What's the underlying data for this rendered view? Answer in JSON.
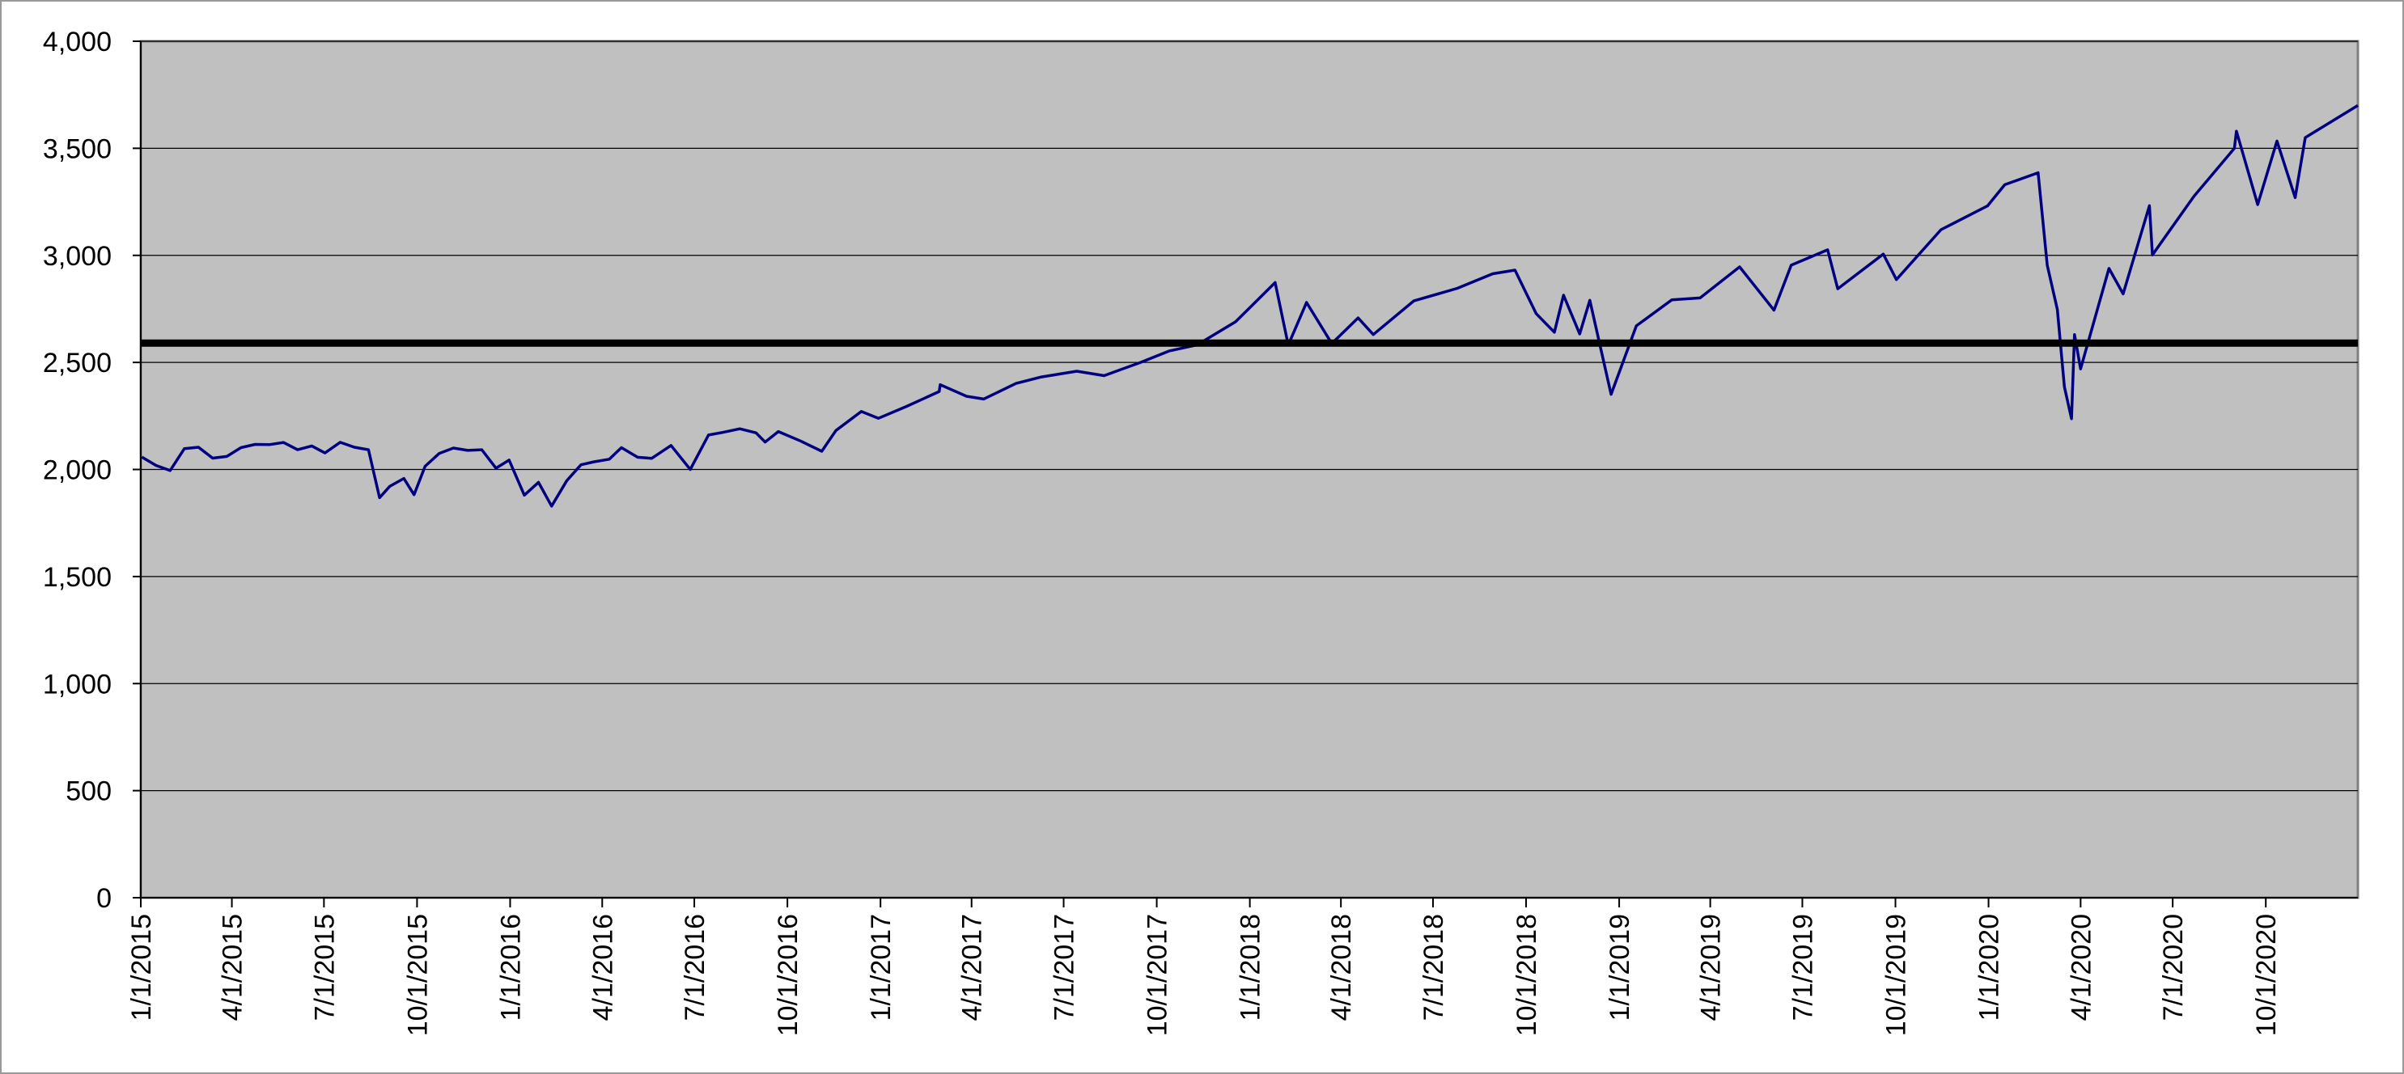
{
  "chart_data": {
    "type": "line",
    "x": [
      "2015-01-02",
      "2015-01-16",
      "2015-01-30",
      "2015-02-13",
      "2015-02-27",
      "2015-03-13",
      "2015-03-27",
      "2015-04-10",
      "2015-04-24",
      "2015-05-08",
      "2015-05-22",
      "2015-06-05",
      "2015-06-19",
      "2015-07-02",
      "2015-07-17",
      "2015-07-31",
      "2015-08-14",
      "2015-08-25",
      "2015-09-04",
      "2015-09-18",
      "2015-09-28",
      "2015-10-09",
      "2015-10-23",
      "2015-11-06",
      "2015-11-20",
      "2015-12-04",
      "2015-12-18",
      "2015-12-31",
      "2016-01-15",
      "2016-01-29",
      "2016-02-11",
      "2016-02-26",
      "2016-03-11",
      "2016-03-24",
      "2016-04-08",
      "2016-04-20",
      "2016-05-06",
      "2016-05-20",
      "2016-06-08",
      "2016-06-27",
      "2016-07-15",
      "2016-07-29",
      "2016-08-15",
      "2016-08-31",
      "2016-09-09",
      "2016-09-22",
      "2016-10-14",
      "2016-11-04",
      "2016-11-18",
      "2016-12-13",
      "2016-12-30",
      "2017-01-27",
      "2017-02-28",
      "2017-03-01",
      "2017-03-27",
      "2017-04-13",
      "2017-05-15",
      "2017-06-09",
      "2017-07-14",
      "2017-08-10",
      "2017-09-15",
      "2017-10-13",
      "2017-11-10",
      "2017-12-18",
      "2018-01-26",
      "2018-02-08",
      "2018-02-26",
      "2018-03-23",
      "2018-04-18",
      "2018-05-03",
      "2018-06-12",
      "2018-07-25",
      "2018-08-29",
      "2018-09-20",
      "2018-10-11",
      "2018-10-29",
      "2018-11-07",
      "2018-11-23",
      "2018-12-03",
      "2018-12-24",
      "2019-01-18",
      "2019-02-22",
      "2019-03-22",
      "2019-04-30",
      "2019-06-03",
      "2019-06-20",
      "2019-07-26",
      "2019-08-05",
      "2019-09-19",
      "2019-10-02",
      "2019-11-15",
      "2019-12-31",
      "2020-01-17",
      "2020-02-19",
      "2020-02-28",
      "2020-03-09",
      "2020-03-16",
      "2020-03-23",
      "2020-03-26",
      "2020-04-01",
      "2020-04-29",
      "2020-05-13",
      "2020-06-08",
      "2020-06-11",
      "2020-07-22",
      "2020-08-31",
      "2020-09-02",
      "2020-09-23",
      "2020-10-12",
      "2020-10-30",
      "2020-11-09",
      "2020-12-31"
    ],
    "series": [
      {
        "color": "#000080",
        "values": [
          2058,
          2019,
          1995,
          2097,
          2104,
          2053,
          2061,
          2102,
          2117,
          2116,
          2126,
          2092,
          2110,
          2077,
          2127,
          2104,
          2092,
          1868,
          1921,
          1958,
          1882,
          2015,
          2075,
          2100,
          2089,
          2092,
          2006,
          2044,
          1880,
          1940,
          1829,
          1948,
          2022,
          2036,
          2048,
          2102,
          2057,
          2052,
          2112,
          2000,
          2161,
          2173,
          2190,
          2171,
          2128,
          2177,
          2133,
          2085,
          2182,
          2271,
          2239,
          2295,
          2364,
          2396,
          2342,
          2329,
          2402,
          2432,
          2459,
          2438,
          2500,
          2553,
          2582,
          2690,
          2873,
          2581,
          2780,
          2588,
          2708,
          2630,
          2787,
          2846,
          2914,
          2931,
          2728,
          2641,
          2814,
          2633,
          2790,
          2351,
          2671,
          2792,
          2801,
          2946,
          2744,
          2954,
          3026,
          2844,
          3006,
          2887,
          3120,
          3231,
          3330,
          3386,
          2954,
          2747,
          2386,
          2237,
          2630,
          2470,
          2939,
          2820,
          3232,
          3002,
          3276,
          3500,
          3580,
          3237,
          3534,
          3270,
          3550,
          3700
        ]
      }
    ],
    "reference_line": {
      "value": 2590,
      "color": "#000000"
    },
    "xlim": [
      "2015-01-01",
      "2020-12-31"
    ],
    "xticks": [
      {
        "value": "2015-01-01",
        "label": "1/1/2015"
      },
      {
        "value": "2015-04-01",
        "label": "4/1/2015"
      },
      {
        "value": "2015-07-01",
        "label": "7/1/2015"
      },
      {
        "value": "2015-10-01",
        "label": "10/1/2015"
      },
      {
        "value": "2016-01-01",
        "label": "1/1/2016"
      },
      {
        "value": "2016-04-01",
        "label": "4/1/2016"
      },
      {
        "value": "2016-07-01",
        "label": "7/1/2016"
      },
      {
        "value": "2016-10-01",
        "label": "10/1/2016"
      },
      {
        "value": "2017-01-01",
        "label": "1/1/2017"
      },
      {
        "value": "2017-04-01",
        "label": "4/1/2017"
      },
      {
        "value": "2017-07-01",
        "label": "7/1/2017"
      },
      {
        "value": "2017-10-01",
        "label": "10/1/2017"
      },
      {
        "value": "2018-01-01",
        "label": "1/1/2018"
      },
      {
        "value": "2018-04-01",
        "label": "4/1/2018"
      },
      {
        "value": "2018-07-01",
        "label": "7/1/2018"
      },
      {
        "value": "2018-10-01",
        "label": "10/1/2018"
      },
      {
        "value": "2019-01-01",
        "label": "1/1/2019"
      },
      {
        "value": "2019-04-01",
        "label": "4/1/2019"
      },
      {
        "value": "2019-07-01",
        "label": "7/1/2019"
      },
      {
        "value": "2019-10-01",
        "label": "10/1/2019"
      },
      {
        "value": "2020-01-01",
        "label": "1/1/2020"
      },
      {
        "value": "2020-04-01",
        "label": "4/1/2020"
      },
      {
        "value": "2020-07-01",
        "label": "7/1/2020"
      },
      {
        "value": "2020-10-01",
        "label": "10/1/2020"
      }
    ],
    "ylim": [
      0,
      4000
    ],
    "yticks": [
      0,
      500,
      {
        "value": 1000,
        "label": "1,000"
      },
      {
        "value": 1500,
        "label": "1,500"
      },
      {
        "value": 2000,
        "label": "2,000"
      },
      {
        "value": 2500,
        "label": "2,500"
      },
      {
        "value": 3000,
        "label": "3,000"
      },
      {
        "value": 3500,
        "label": "3,500"
      },
      {
        "value": 4000,
        "label": "4,000"
      }
    ],
    "grid": true,
    "plot_background": "#c0c0c0"
  }
}
